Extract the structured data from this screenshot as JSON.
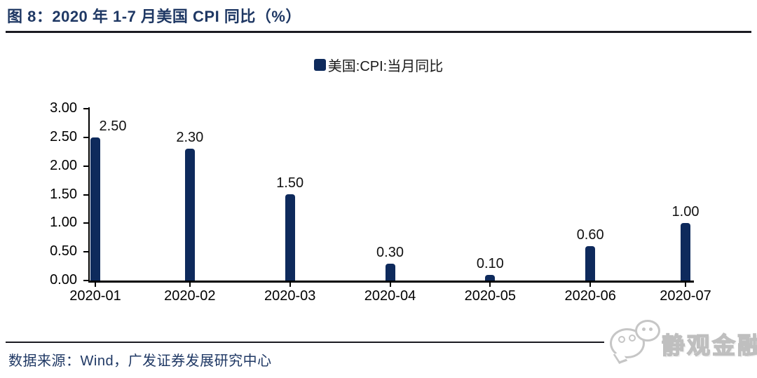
{
  "figure": {
    "title": "图 8：2020 年 1-7 月美国 CPI 同比（%）",
    "source": "数据来源：Wind，广发证券发展研究中心",
    "watermark": "静观金融"
  },
  "chart_data": {
    "type": "bar",
    "title": "2020 年 1-7 月美国 CPI 同比（%）",
    "legend": [
      {
        "label": "美国:CPI:当月同比",
        "color": "#0E2A5C"
      }
    ],
    "legend_position": "top-center",
    "categories": [
      "2020-01",
      "2020-02",
      "2020-03",
      "2020-04",
      "2020-05",
      "2020-06",
      "2020-07"
    ],
    "series": [
      {
        "name": "美国:CPI:当月同比",
        "values": [
          2.5,
          2.3,
          1.5,
          0.3,
          0.1,
          0.6,
          1.0
        ]
      }
    ],
    "data_labels": [
      "2.50",
      "2.30",
      "1.50",
      "0.30",
      "0.10",
      "0.60",
      "1.00"
    ],
    "ylim": [
      0,
      3
    ],
    "ytick_step": 0.5,
    "yticks": [
      "0.00",
      "0.50",
      "1.00",
      "1.50",
      "2.00",
      "2.50",
      "3.00"
    ],
    "grid": false,
    "bar_color": "#0E2A5C",
    "xlabel": "",
    "ylabel": ""
  },
  "colors": {
    "bar": "#0E2A5C",
    "navy_text": "#1F3864",
    "axis": "#000000",
    "watermark_gray": "#c6c6c6"
  }
}
